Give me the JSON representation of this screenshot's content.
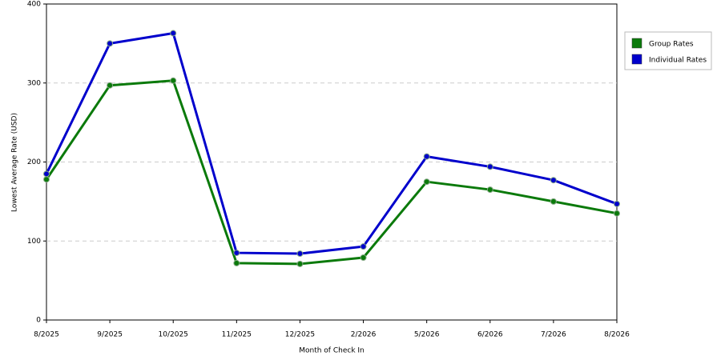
{
  "chart_data": {
    "type": "line",
    "x_label": "Month of Check In",
    "y_label": "Lowest Average Rate (USD)",
    "categories": [
      "8/2025",
      "9/2025",
      "10/2025",
      "11/2025",
      "12/2025",
      "2/2026",
      "5/2026",
      "6/2026",
      "7/2026",
      "8/2026"
    ],
    "series": [
      {
        "name": "Group Rates",
        "color": "#0b7a0b",
        "values": [
          178,
          297,
          303,
          72,
          71,
          79,
          175,
          165,
          150,
          135
        ]
      },
      {
        "name": "Individual Rates",
        "color": "#0000cc",
        "values": [
          185,
          350,
          363,
          85,
          84,
          93,
          207,
          194,
          177,
          147
        ]
      }
    ],
    "ylim": [
      0,
      400
    ],
    "yticks": [
      0,
      100,
      200,
      300,
      400
    ],
    "grid": true,
    "legend": "right"
  }
}
